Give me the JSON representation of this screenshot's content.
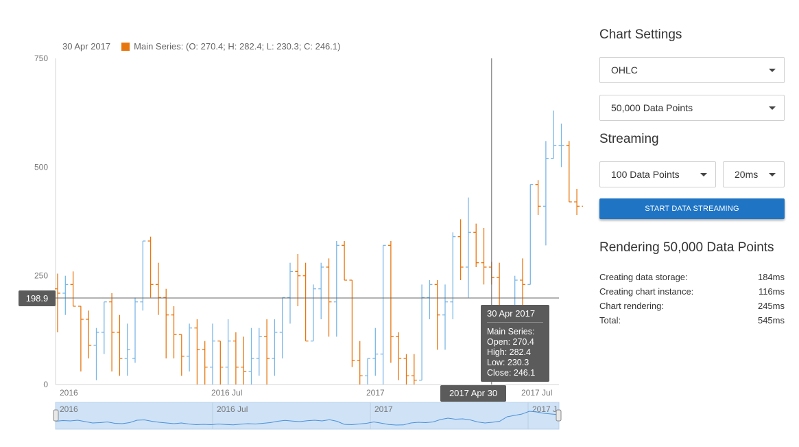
{
  "legend": {
    "date": "30 Apr 2017",
    "series_text": "Main Series: (O: 270.4; H: 282.4; L: 230.3; C: 246.1)",
    "swatch_color": "#e8760f"
  },
  "crosshair": {
    "y_label": "198.9",
    "y_value": 198.9,
    "x_label": "2017 Apr 30",
    "x_index": 56
  },
  "tooltip": {
    "date": "30 Apr 2017",
    "series": "Main Series:",
    "open": "Open: 270.4",
    "high": "High: 282.4",
    "low": "Low: 230.3",
    "close": "Close: 246.1"
  },
  "chart_data": {
    "type": "ohlc",
    "ylim": [
      0,
      750
    ],
    "y_ticks": [
      "750",
      "500",
      "250",
      "0"
    ],
    "y_tick_values": [
      750,
      500,
      250,
      0
    ],
    "x_tick_labels": [
      {
        "label": "2016",
        "index": 0
      },
      {
        "label": "2016 Jul",
        "index": 20
      },
      {
        "label": "2017",
        "index": 40
      },
      {
        "label": "2017 Jul",
        "index": 60
      }
    ],
    "up_color": "#7ab6e6",
    "down_color": "#e8760f",
    "bars": [
      [
        220,
        255,
        120,
        210
      ],
      [
        210,
        250,
        160,
        230
      ],
      [
        230,
        260,
        180,
        180
      ],
      [
        180,
        180,
        30,
        150
      ],
      [
        150,
        170,
        60,
        90
      ],
      [
        90,
        130,
        10,
        120
      ],
      [
        120,
        190,
        70,
        190
      ],
      [
        190,
        210,
        30,
        120
      ],
      [
        120,
        160,
        20,
        60
      ],
      [
        60,
        140,
        20,
        80
      ],
      [
        60,
        200,
        50,
        190
      ],
      [
        190,
        330,
        170,
        330
      ],
      [
        330,
        340,
        200,
        230
      ],
      [
        230,
        280,
        160,
        200
      ],
      [
        200,
        220,
        60,
        160
      ],
      [
        160,
        180,
        60,
        115
      ],
      [
        115,
        115,
        20,
        65
      ],
      [
        65,
        140,
        30,
        130
      ],
      [
        130,
        150,
        0,
        80
      ],
      [
        80,
        100,
        0,
        40
      ],
      [
        40,
        140,
        0,
        100
      ],
      [
        100,
        100,
        0,
        40
      ],
      [
        40,
        150,
        0,
        100
      ],
      [
        100,
        120,
        0,
        40
      ],
      [
        40,
        110,
        0,
        30
      ],
      [
        30,
        130,
        0,
        60
      ],
      [
        60,
        130,
        20,
        110
      ],
      [
        110,
        150,
        0,
        60
      ],
      [
        60,
        150,
        20,
        120
      ],
      [
        120,
        180,
        60,
        200
      ],
      [
        200,
        280,
        140,
        260
      ],
      [
        260,
        300,
        180,
        250
      ],
      [
        250,
        280,
        100,
        100
      ],
      [
        100,
        230,
        110,
        220
      ],
      [
        220,
        280,
        150,
        270
      ],
      [
        270,
        290,
        110,
        190
      ],
      [
        190,
        330,
        110,
        320
      ],
      [
        320,
        330,
        240,
        240
      ],
      [
        240,
        200,
        40,
        55
      ],
      [
        55,
        100,
        0,
        20
      ],
      [
        20,
        50,
        0,
        60
      ],
      [
        60,
        130,
        20,
        70
      ],
      [
        70,
        160,
        0,
        320
      ],
      [
        320,
        330,
        50,
        110
      ],
      [
        110,
        120,
        10,
        60
      ],
      [
        60,
        70,
        0,
        20
      ],
      [
        20,
        70,
        0,
        10
      ],
      [
        10,
        230,
        10,
        200
      ],
      [
        200,
        240,
        150,
        230
      ],
      [
        230,
        240,
        80,
        160
      ],
      [
        160,
        230,
        80,
        190
      ],
      [
        190,
        350,
        150,
        340
      ],
      [
        340,
        380,
        240,
        270
      ],
      [
        270,
        430,
        200,
        350
      ],
      [
        350,
        370,
        270,
        280
      ],
      [
        280,
        360,
        230,
        270
      ],
      [
        270,
        282,
        230,
        246
      ],
      [
        246,
        280,
        120,
        100
      ],
      [
        100,
        160,
        20,
        160
      ],
      [
        160,
        250,
        130,
        240
      ],
      [
        240,
        290,
        170,
        230
      ],
      [
        230,
        460,
        230,
        460
      ],
      [
        460,
        470,
        390,
        410
      ],
      [
        410,
        560,
        320,
        520
      ],
      [
        520,
        630,
        520,
        550
      ],
      [
        550,
        600,
        500,
        550
      ],
      [
        550,
        560,
        430,
        420
      ],
      [
        420,
        450,
        390,
        410
      ],
      [
        410,
        430,
        390,
        400
      ]
    ]
  },
  "navigator": {
    "labels": [
      "2016",
      "2016 Jul",
      "2017",
      "2017 J"
    ],
    "line": [
      225,
      235,
      230,
      240,
      220,
      200,
      205,
      215,
      195,
      190,
      205,
      240,
      245,
      225,
      210,
      200,
      190,
      200,
      185,
      175,
      180,
      175,
      185,
      178,
      172,
      182,
      190,
      185,
      195,
      205,
      225,
      238,
      228,
      220,
      232,
      240,
      230,
      248,
      225,
      180,
      175,
      185,
      195,
      215,
      198,
      178,
      170,
      172,
      200,
      210,
      205,
      215,
      250,
      270,
      255,
      260,
      245,
      215,
      200,
      210,
      225,
      290,
      310,
      330,
      370,
      360,
      340,
      330,
      320
    ]
  },
  "panel": {
    "settings_title": "Chart Settings",
    "chart_type": "OHLC",
    "data_points": "50,000 Data Points",
    "streaming_title": "Streaming",
    "stream_points": "100 Data Points",
    "stream_interval": "20ms",
    "start_button": "START DATA STREAMING",
    "rendering_title": "Rendering 50,000 Data Points",
    "stats": [
      {
        "label": "Creating data storage:",
        "value": "184ms"
      },
      {
        "label": "Creating chart instance:",
        "value": "116ms"
      },
      {
        "label": "Chart rendering:",
        "value": "245ms"
      },
      {
        "label": "Total:",
        "value": "545ms"
      }
    ]
  }
}
